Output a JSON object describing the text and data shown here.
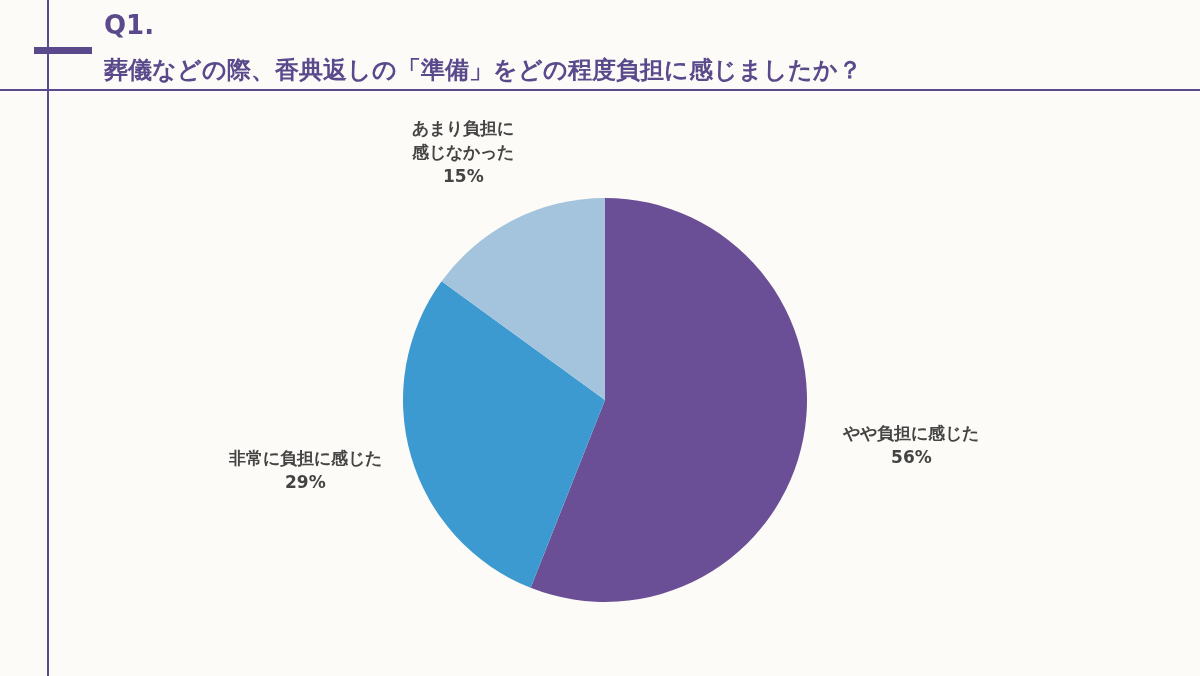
{
  "chart_data": {
    "type": "pie",
    "title": "Q1.",
    "subtitle": "葬儀などの際、香典返しの「準備」をどの程度負担に感じましたか？",
    "categories": [
      "やや負担に感じた",
      "非常に負担に感じた",
      "あまり負担に感じなかった"
    ],
    "values": [
      56,
      29,
      15
    ],
    "colors": [
      "#6a4f96",
      "#3d9ad1",
      "#a3c4dc"
    ],
    "value_labels": [
      "56%",
      "29%",
      "15%"
    ],
    "legend": false
  }
}
